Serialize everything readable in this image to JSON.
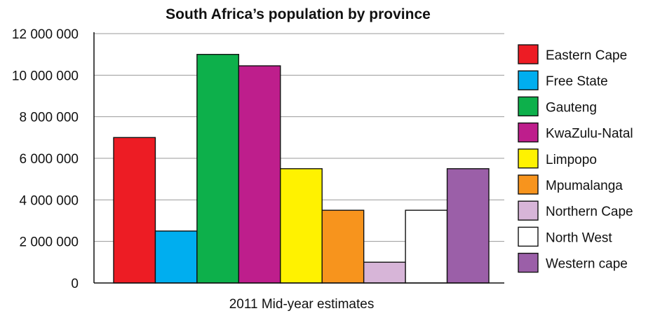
{
  "chart_data": {
    "type": "bar",
    "title": "South Africa’s population by province",
    "xlabel": "2011 Mid-year estimates",
    "ylabel": "",
    "ylim": [
      0,
      12000000
    ],
    "yticks": [
      0,
      2000000,
      4000000,
      6000000,
      8000000,
      10000000,
      12000000
    ],
    "ytick_labels": [
      "0",
      "2 000 000",
      "4 000 000",
      "6 000 000",
      "8 000 000",
      "10 000 000",
      "12 000 000"
    ],
    "grid": true,
    "legend_position": "right",
    "categories": [
      "2011 Mid-year estimates"
    ],
    "series": [
      {
        "name": "Eastern Cape",
        "values": [
          7000000
        ],
        "color": "#ed1c24"
      },
      {
        "name": "Free State",
        "values": [
          2500000
        ],
        "color": "#00aeef"
      },
      {
        "name": "Gauteng",
        "values": [
          11000000
        ],
        "color": "#0db04b"
      },
      {
        "name": "KwaZulu-Natal",
        "values": [
          10450000
        ],
        "color": "#be1e8c"
      },
      {
        "name": "Limpopo",
        "values": [
          5500000
        ],
        "color": "#fff200"
      },
      {
        "name": "Mpumalanga",
        "values": [
          3500000
        ],
        "color": "#f7941d"
      },
      {
        "name": "Northern Cape",
        "values": [
          1000000
        ],
        "color": "#d7b5d8"
      },
      {
        "name": "North West",
        "values": [
          3500000
        ],
        "color": "#ffffff"
      },
      {
        "name": "Western cape",
        "values": [
          5500000
        ],
        "color": "#9b5fa8"
      }
    ]
  }
}
